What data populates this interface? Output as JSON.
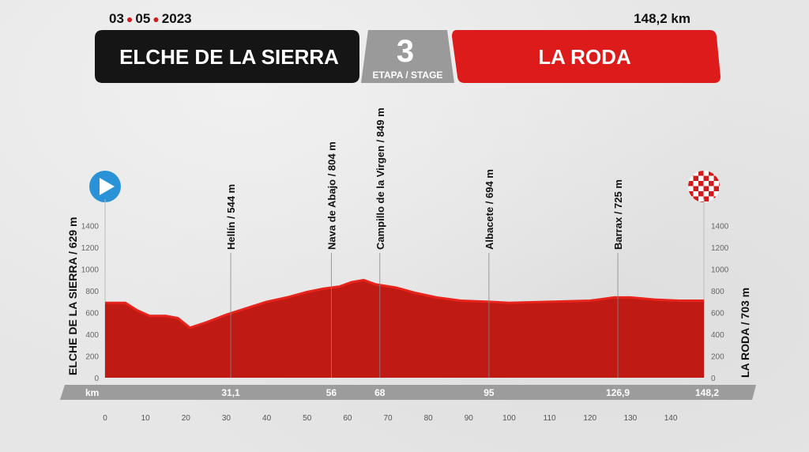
{
  "header": {
    "date_day": "03",
    "date_month": "05",
    "date_year": "2023",
    "distance": "148,2 km",
    "start": "ELCHE DE LA SIERRA",
    "finish": "LA RODA",
    "stage_number": "3",
    "stage_label": "ETAPA / STAGE"
  },
  "colors": {
    "profile_fill": "#c01a14",
    "profile_top": "#e8231c",
    "start_banner": "#151515",
    "finish_banner": "#de1b1b",
    "stage_box": "#9a9a9a",
    "km_bar": "#9c9c9c",
    "start_icon": "#2a93d8"
  },
  "icons": {
    "start": "play-icon",
    "finish": "checkered-flag-icon"
  },
  "side_labels": {
    "left": "ELCHE DE LA SIERRA / 629 m",
    "right": "LA RODA / 703 m"
  },
  "chart_data": {
    "type": "area",
    "xlabel": "km",
    "x_range": [
      0,
      148.2
    ],
    "y_range": [
      0,
      1500
    ],
    "x_ticks": [
      0,
      10,
      20,
      30,
      40,
      50,
      60,
      70,
      80,
      90,
      100,
      110,
      120,
      130,
      140
    ],
    "y_ticks": [
      0,
      200,
      400,
      600,
      800,
      1000,
      1200,
      1400
    ],
    "profile": [
      [
        0,
        690
      ],
      [
        5,
        690
      ],
      [
        8,
        620
      ],
      [
        11,
        570
      ],
      [
        15,
        570
      ],
      [
        18,
        550
      ],
      [
        21,
        460
      ],
      [
        25,
        510
      ],
      [
        30,
        580
      ],
      [
        35,
        640
      ],
      [
        40,
        700
      ],
      [
        45,
        740
      ],
      [
        50,
        790
      ],
      [
        54,
        820
      ],
      [
        58,
        840
      ],
      [
        61,
        880
      ],
      [
        64,
        900
      ],
      [
        67,
        860
      ],
      [
        72,
        830
      ],
      [
        77,
        780
      ],
      [
        82,
        740
      ],
      [
        88,
        710
      ],
      [
        95,
        700
      ],
      [
        100,
        690
      ],
      [
        110,
        700
      ],
      [
        120,
        710
      ],
      [
        126,
        740
      ],
      [
        130,
        740
      ],
      [
        136,
        720
      ],
      [
        142,
        710
      ],
      [
        148.2,
        710
      ]
    ],
    "waypoints": [
      {
        "name": "Hellín / 544 m",
        "km": 31.1,
        "km_label": "31,1"
      },
      {
        "name": "Nava de Abajo / 804 m",
        "km": 56,
        "km_label": "56"
      },
      {
        "name": "Campillo de la Virgen / 849 m",
        "km": 68,
        "km_label": "68"
      },
      {
        "name": "Albacete / 694 m",
        "km": 95,
        "km_label": "95"
      },
      {
        "name": "Barrax / 725 m",
        "km": 126.9,
        "km_label": "126,9"
      }
    ],
    "finish_km_label": "148,2"
  }
}
